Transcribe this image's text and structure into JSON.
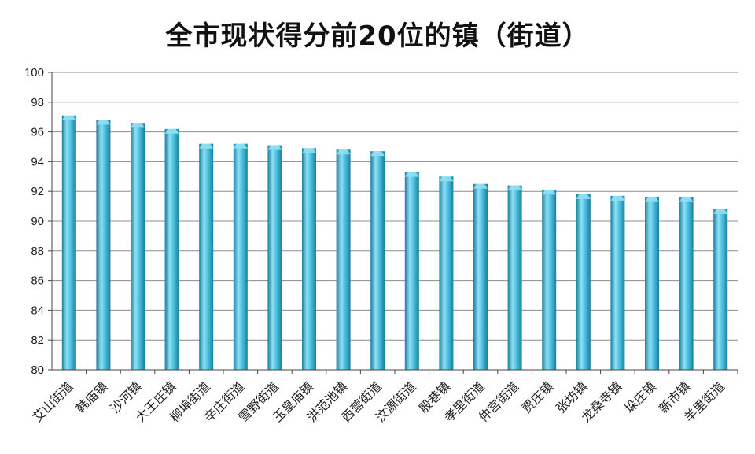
{
  "chart_data": {
    "type": "bar",
    "title": "全市现状得分前20位的镇（街道）",
    "categories": [
      "艾山街道",
      "韩庙镇",
      "沙河镇",
      "大王庄镇",
      "柳埠街道",
      "辛庄街道",
      "雪野街道",
      "玉皇庙镇",
      "洪范池镇",
      "西营街道",
      "汶源街道",
      "殷巷镇",
      "孝里街道",
      "仲宫街道",
      "贾庄镇",
      "张坊镇",
      "龙桑寺镇",
      "垛庄镇",
      "新市镇",
      "羊里街道"
    ],
    "values": [
      97.1,
      96.8,
      96.6,
      96.2,
      95.2,
      95.2,
      95.1,
      94.9,
      94.8,
      94.7,
      93.3,
      93.0,
      92.5,
      92.4,
      92.1,
      91.8,
      91.7,
      91.6,
      91.6,
      90.8
    ],
    "ylim": [
      80,
      100
    ],
    "yticks": [
      80,
      82,
      84,
      86,
      88,
      90,
      92,
      94,
      96,
      98,
      100
    ],
    "grid": true,
    "legend": "none",
    "colors": {
      "bar_dark": "#1b7f9c",
      "bar_mid": "#4fc3e3",
      "bar_light": "#8fe0f3",
      "grid": "#8c8c8c",
      "axis": "#444444"
    }
  }
}
